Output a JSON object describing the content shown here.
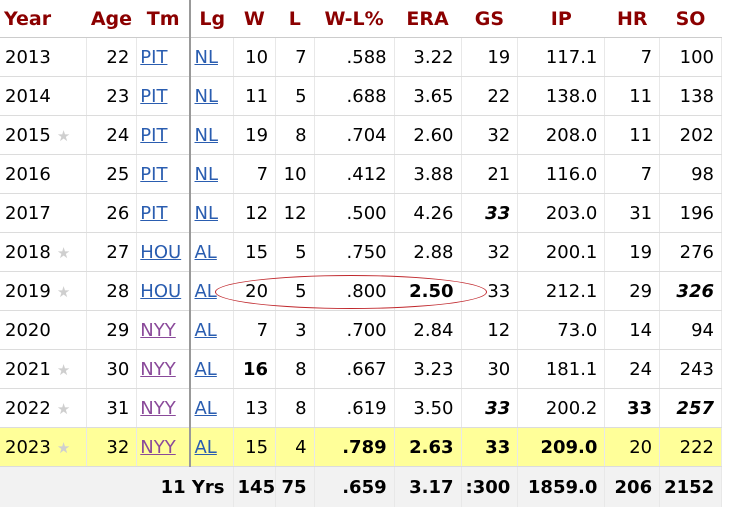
{
  "headers": {
    "year": "Year",
    "age": "Age",
    "tm": "Tm",
    "lg": "Lg",
    "w": "W",
    "l": "L",
    "wl": "W-L%",
    "era": "ERA",
    "gs": "GS",
    "ip": "IP",
    "hr": "HR",
    "so": "SO"
  },
  "rows": [
    {
      "year": "2013",
      "star": false,
      "age": "22",
      "tm": "PIT",
      "lg": "NL",
      "w": "10",
      "l": "7",
      "wl": ".588",
      "era": "3.22",
      "gs": "19",
      "ip": "117.1",
      "hr": "7",
      "so": "100"
    },
    {
      "year": "2014",
      "star": false,
      "age": "23",
      "tm": "PIT",
      "lg": "NL",
      "w": "11",
      "l": "5",
      "wl": ".688",
      "era": "3.65",
      "gs": "22",
      "ip": "138.0",
      "hr": "11",
      "so": "138"
    },
    {
      "year": "2015",
      "star": true,
      "age": "24",
      "tm": "PIT",
      "lg": "NL",
      "w": "19",
      "l": "8",
      "wl": ".704",
      "era": "2.60",
      "gs": "32",
      "ip": "208.0",
      "hr": "11",
      "so": "202"
    },
    {
      "year": "2016",
      "star": false,
      "age": "25",
      "tm": "PIT",
      "lg": "NL",
      "w": "7",
      "l": "10",
      "wl": ".412",
      "era": "3.88",
      "gs": "21",
      "ip": "116.0",
      "hr": "7",
      "so": "98"
    },
    {
      "year": "2017",
      "star": false,
      "age": "26",
      "tm": "PIT",
      "lg": "NL",
      "w": "12",
      "l": "12",
      "wl": ".500",
      "era": "4.26",
      "gs": "33",
      "ip": "203.0",
      "hr": "31",
      "so": "196"
    },
    {
      "year": "2018",
      "star": true,
      "age": "27",
      "tm": "HOU",
      "lg": "AL",
      "w": "15",
      "l": "5",
      "wl": ".750",
      "era": "2.88",
      "gs": "32",
      "ip": "200.1",
      "hr": "19",
      "so": "276"
    },
    {
      "year": "2019",
      "star": true,
      "age": "28",
      "tm": "HOU",
      "lg": "AL",
      "w": "20",
      "l": "5",
      "wl": ".800",
      "era": "2.50",
      "gs": "33",
      "ip": "212.1",
      "hr": "29",
      "so": "326"
    },
    {
      "year": "2020",
      "star": false,
      "age": "29",
      "tm": "NYY",
      "lg": "AL",
      "w": "7",
      "l": "3",
      "wl": ".700",
      "era": "2.84",
      "gs": "12",
      "ip": "73.0",
      "hr": "14",
      "so": "94"
    },
    {
      "year": "2021",
      "star": true,
      "age": "30",
      "tm": "NYY",
      "lg": "AL",
      "w": "16",
      "l": "8",
      "wl": ".667",
      "era": "3.23",
      "gs": "30",
      "ip": "181.1",
      "hr": "24",
      "so": "243"
    },
    {
      "year": "2022",
      "star": true,
      "age": "31",
      "tm": "NYY",
      "lg": "AL",
      "w": "13",
      "l": "8",
      "wl": ".619",
      "era": "3.50",
      "gs": "33",
      "ip": "200.2",
      "hr": "33",
      "so": "257"
    },
    {
      "year": "2023",
      "star": true,
      "age": "32",
      "tm": "NYY",
      "lg": "AL",
      "w": "15",
      "l": "4",
      "wl": ".789",
      "era": "2.63",
      "gs": "33",
      "ip": "209.0",
      "hr": "20",
      "so": "222"
    }
  ],
  "totals": {
    "label": "11 Yrs",
    "w": "145",
    "l": "75",
    "wl": ".659",
    "era": "3.17",
    "gs": ":300",
    "ip": "1859.0",
    "hr": "206",
    "so": "2152"
  },
  "colors": {
    "header_text": "#8b0000",
    "link": "#2a5db0",
    "visited_link": "#8a4a9a",
    "highlight_row": "#ffff99",
    "annotation": "#c0282d"
  }
}
